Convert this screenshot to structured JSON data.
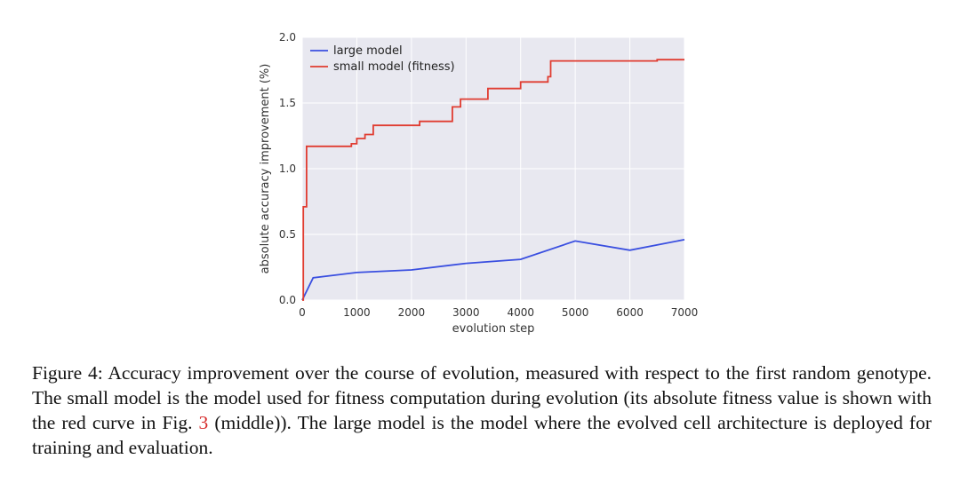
{
  "chart_data": {
    "type": "line",
    "title": "",
    "xlabel": "evolution step",
    "ylabel": "absolute accuracy improvement (%)",
    "xlim": [
      0,
      7000
    ],
    "ylim": [
      0.0,
      2.0
    ],
    "x_ticks": [
      0,
      1000,
      2000,
      3000,
      4000,
      5000,
      6000,
      7000
    ],
    "y_ticks": [
      0.0,
      0.5,
      1.0,
      1.5,
      2.0
    ],
    "y_tick_labels": [
      "0.0",
      "0.5",
      "1.0",
      "1.5",
      "2.0"
    ],
    "grid": true,
    "legend_position": "top-left",
    "series": [
      {
        "name": "large model",
        "color": "#3a4fe0",
        "step": false,
        "x": [
          0,
          200,
          1000,
          2000,
          3000,
          4000,
          5000,
          6000,
          7000
        ],
        "y": [
          0.0,
          0.17,
          0.21,
          0.23,
          0.28,
          0.31,
          0.45,
          0.38,
          0.46
        ]
      },
      {
        "name": "small model (fitness)",
        "color": "#e03c31",
        "step": true,
        "x": [
          0,
          20,
          80,
          800,
          900,
          1000,
          1150,
          1300,
          1600,
          1900,
          2150,
          2600,
          2750,
          2900,
          3400,
          4000,
          4400,
          4500,
          4550,
          5000,
          6000,
          6500,
          7000
        ],
        "y": [
          0.0,
          0.71,
          1.17,
          1.17,
          1.19,
          1.23,
          1.26,
          1.33,
          1.33,
          1.33,
          1.36,
          1.36,
          1.47,
          1.53,
          1.61,
          1.66,
          1.66,
          1.7,
          1.82,
          1.82,
          1.82,
          1.83,
          1.83
        ]
      }
    ]
  },
  "caption": {
    "prefix": "Figure 4: Accuracy improvement over the course of evolution, measured with respect to the first random genotype. The small model is the model used for fitness computation during evolution (its absolute fitness value is shown with the red curve in Fig. ",
    "ref": "3",
    "suffix": " (middle)). The large model is the model where the evolved cell architecture is deployed for training and evaluation."
  }
}
